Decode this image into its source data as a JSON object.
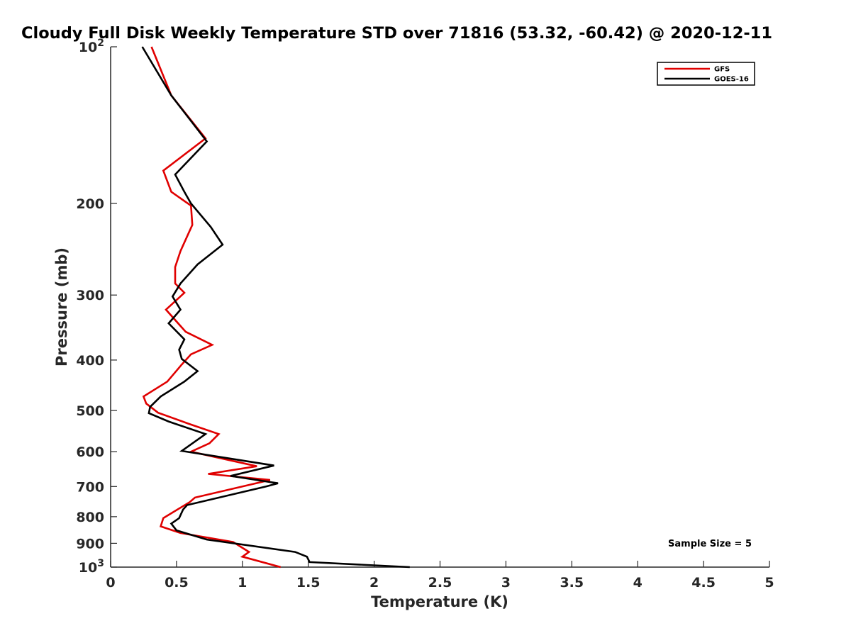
{
  "chart_data": {
    "type": "line",
    "title": "Cloudy Full Disk Weekly Temperature STD over 71816 (53.32, -60.42) @ 2020-12-11",
    "xlabel": "Temperature (K)",
    "ylabel": "Pressure (mb)",
    "xlim": [
      0,
      5
    ],
    "ylim": [
      100,
      1000
    ],
    "y_scale": "log",
    "y_reversed": true,
    "x_ticks": [
      "0",
      "0.5",
      "1",
      "1.5",
      "2",
      "2.5",
      "3",
      "3.5",
      "4",
      "4.5",
      "5"
    ],
    "x_tick_values": [
      0,
      0.5,
      1,
      1.5,
      2,
      2.5,
      3,
      3.5,
      4,
      4.5,
      5
    ],
    "y_ticks": [
      {
        "value": 100,
        "label": "10",
        "sup": "2"
      },
      {
        "value": 200,
        "label": "200",
        "sup": ""
      },
      {
        "value": 300,
        "label": "300",
        "sup": ""
      },
      {
        "value": 400,
        "label": "400",
        "sup": ""
      },
      {
        "value": 500,
        "label": "500",
        "sup": ""
      },
      {
        "value": 600,
        "label": "600",
        "sup": ""
      },
      {
        "value": 700,
        "label": "700",
        "sup": ""
      },
      {
        "value": 800,
        "label": "800",
        "sup": ""
      },
      {
        "value": 900,
        "label": "900",
        "sup": ""
      },
      {
        "value": 1000,
        "label": "10",
        "sup": "3"
      }
    ],
    "legend_position": "top-right",
    "grid": false,
    "annotation": "Sample Size = 5",
    "series": [
      {
        "name": "GFS",
        "color": "#e00000",
        "points": [
          [
            0.31,
            100
          ],
          [
            0.46,
            124
          ],
          [
            0.72,
            150
          ],
          [
            0.4,
            173
          ],
          [
            0.46,
            190
          ],
          [
            0.61,
            202
          ],
          [
            0.62,
            220
          ],
          [
            0.53,
            247
          ],
          [
            0.49,
            265
          ],
          [
            0.49,
            285
          ],
          [
            0.56,
            297
          ],
          [
            0.42,
            320
          ],
          [
            0.57,
            353
          ],
          [
            0.77,
            374
          ],
          [
            0.61,
            390
          ],
          [
            0.54,
            408
          ],
          [
            0.43,
            440
          ],
          [
            0.25,
            470
          ],
          [
            0.27,
            485
          ],
          [
            0.36,
            505
          ],
          [
            0.59,
            530
          ],
          [
            0.82,
            555
          ],
          [
            0.75,
            578
          ],
          [
            0.61,
            600
          ],
          [
            1.11,
            640
          ],
          [
            0.74,
            662
          ],
          [
            1.21,
            680
          ],
          [
            0.64,
            735
          ],
          [
            0.6,
            750
          ],
          [
            0.4,
            805
          ],
          [
            0.38,
            835
          ],
          [
            0.53,
            860
          ],
          [
            0.93,
            895
          ],
          [
            1.05,
            935
          ],
          [
            1.0,
            955
          ],
          [
            1.29,
            1000
          ]
        ]
      },
      {
        "name": "GOES-16",
        "color": "#000000",
        "points": [
          [
            0.24,
            100
          ],
          [
            0.46,
            124
          ],
          [
            0.73,
            152
          ],
          [
            0.49,
            176
          ],
          [
            0.56,
            190
          ],
          [
            0.61,
            200
          ],
          [
            0.76,
            222
          ],
          [
            0.85,
            240
          ],
          [
            0.66,
            262
          ],
          [
            0.53,
            285
          ],
          [
            0.47,
            302
          ],
          [
            0.53,
            320
          ],
          [
            0.44,
            340
          ],
          [
            0.56,
            365
          ],
          [
            0.52,
            382
          ],
          [
            0.54,
            398
          ],
          [
            0.66,
            420
          ],
          [
            0.56,
            440
          ],
          [
            0.38,
            470
          ],
          [
            0.3,
            492
          ],
          [
            0.29,
            506
          ],
          [
            0.44,
            525
          ],
          [
            0.72,
            555
          ],
          [
            0.54,
            598
          ],
          [
            1.24,
            638
          ],
          [
            0.91,
            668
          ],
          [
            1.27,
            690
          ],
          [
            1.18,
            700
          ],
          [
            0.58,
            760
          ],
          [
            0.55,
            775
          ],
          [
            0.52,
            805
          ],
          [
            0.46,
            825
          ],
          [
            0.5,
            850
          ],
          [
            0.73,
            885
          ],
          [
            1.4,
            935
          ],
          [
            1.49,
            955
          ],
          [
            1.51,
            978
          ],
          [
            2.27,
            1000
          ]
        ]
      }
    ]
  }
}
